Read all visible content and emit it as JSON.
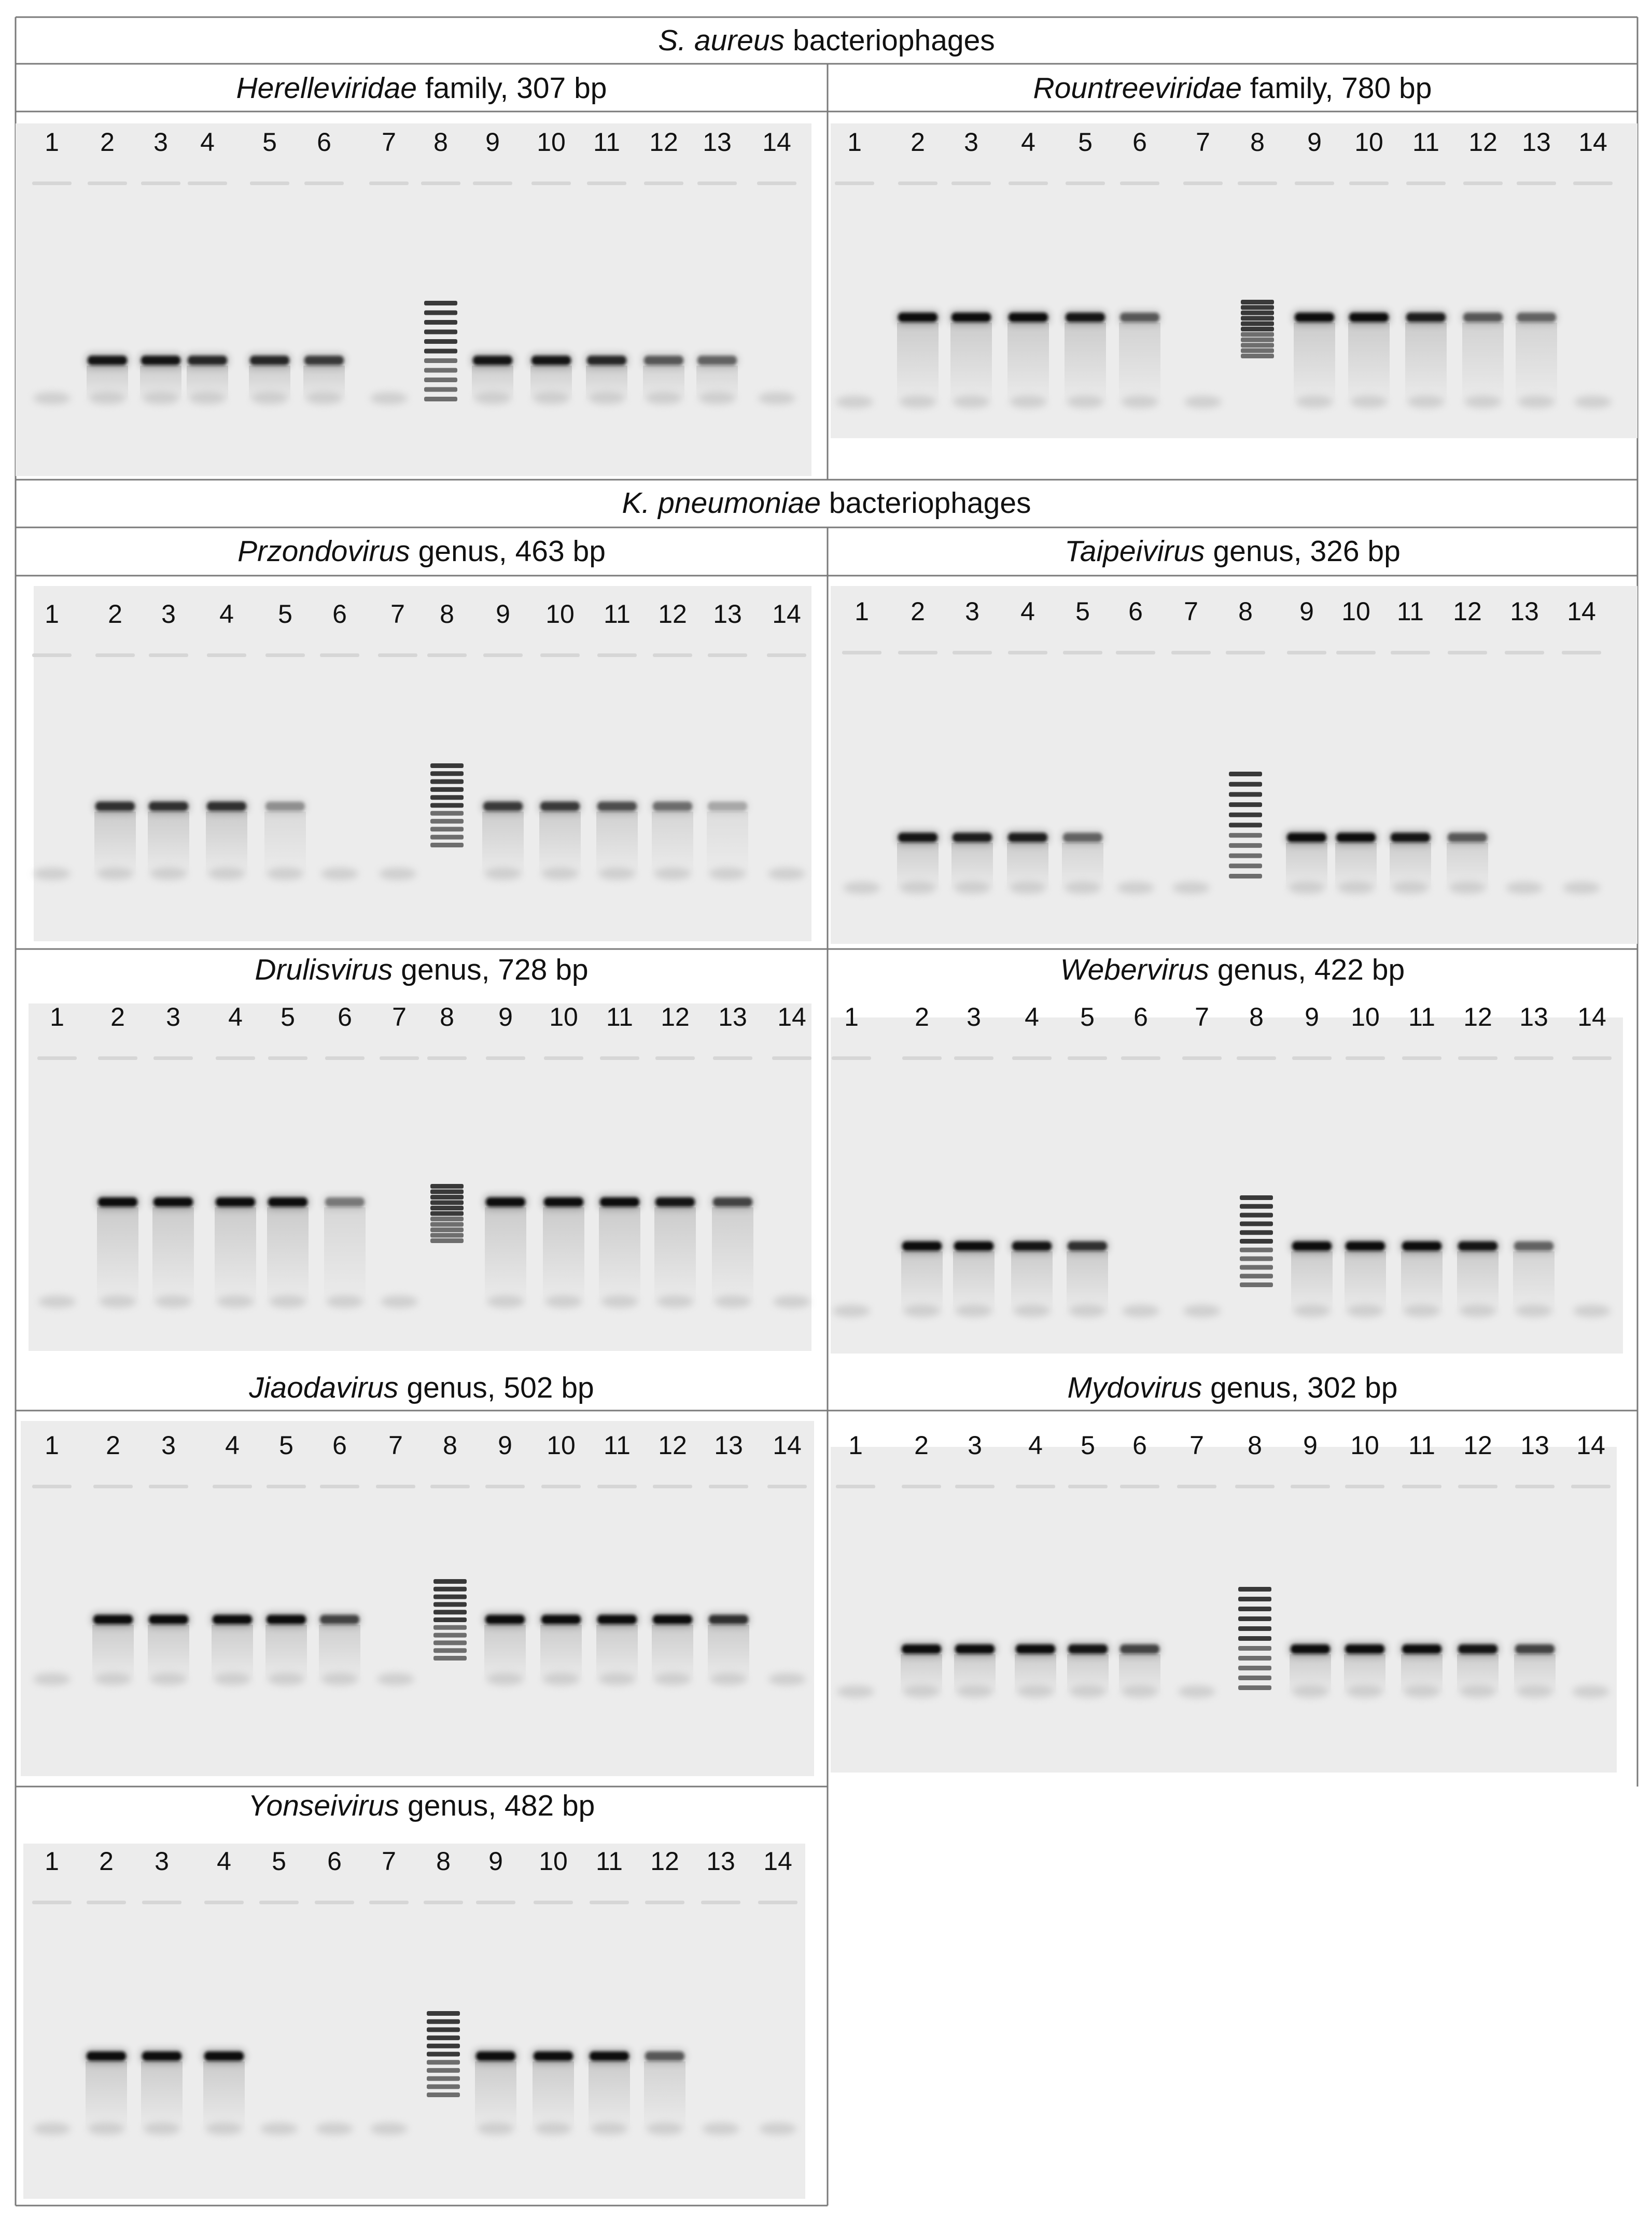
{
  "sections": [
    {
      "organism_italic": "S. aureus",
      "suffix": "bacteriophages"
    },
    {
      "organism_italic": "K. pneumoniae",
      "suffix": "bacteriophages"
    }
  ],
  "panels": [
    {
      "taxon": "Herelleviridae",
      "rank": "family",
      "size": "307 bp",
      "lanes": [
        "1",
        "2",
        "3",
        "4",
        "5",
        "6",
        "7",
        "8",
        "9",
        "10",
        "11",
        "12",
        "13",
        "14"
      ],
      "band_intensity": [
        0,
        0.95,
        0.95,
        0.85,
        0.85,
        0.75,
        0,
        -1,
        0.95,
        0.95,
        0.85,
        0.6,
        0.55,
        0
      ]
    },
    {
      "taxon": "Rountreeviridae",
      "rank": "family",
      "size": "780 bp",
      "lanes": [
        "1",
        "2",
        "3",
        "4",
        "5",
        "6",
        "7",
        "8",
        "9",
        "10",
        "11",
        "12",
        "13",
        "14"
      ],
      "band_intensity": [
        0,
        1,
        1,
        1,
        0.95,
        0.6,
        0,
        -1,
        1,
        1,
        0.9,
        0.6,
        0.55,
        0
      ]
    },
    {
      "taxon": "Przondovirus",
      "rank": "genus",
      "size": "463 bp",
      "lanes": [
        "1",
        "2",
        "3",
        "4",
        "5",
        "6",
        "7",
        "8",
        "9",
        "10",
        "11",
        "12",
        "13",
        "14"
      ],
      "band_intensity": [
        0,
        0.8,
        0.8,
        0.8,
        0.35,
        0,
        0,
        -1,
        0.75,
        0.75,
        0.65,
        0.5,
        0.25,
        0
      ]
    },
    {
      "taxon": "Taipeivirus",
      "rank": "genus",
      "size": "326 bp",
      "lanes": [
        "1",
        "2",
        "3",
        "4",
        "5",
        "6",
        "7",
        "8",
        "9",
        "10",
        "11",
        "12",
        "13",
        "14"
      ],
      "band_intensity": [
        0,
        0.95,
        0.9,
        0.9,
        0.55,
        0,
        0,
        -1,
        1,
        1,
        0.95,
        0.6,
        0,
        0
      ]
    },
    {
      "taxon": "Drulisvirus",
      "rank": "genus",
      "size": "728 bp",
      "lanes": [
        "1",
        "2",
        "3",
        "4",
        "5",
        "6",
        "7",
        "8",
        "9",
        "10",
        "11",
        "12",
        "13",
        "14"
      ],
      "band_intensity": [
        0,
        1,
        1,
        1,
        1,
        0.45,
        0,
        -1,
        1,
        1,
        1,
        0.95,
        0.7,
        0
      ]
    },
    {
      "taxon": "Webervirus",
      "rank": "genus",
      "size": "422 bp",
      "lanes": [
        "1",
        "2",
        "3",
        "4",
        "5",
        "6",
        "7",
        "8",
        "9",
        "10",
        "11",
        "12",
        "13",
        "14"
      ],
      "band_intensity": [
        0,
        1,
        1,
        0.95,
        0.8,
        0,
        0,
        -1,
        1,
        1,
        1,
        0.95,
        0.55,
        0
      ]
    },
    {
      "taxon": "Jiaodavirus",
      "rank": "genus",
      "size": "502 bp",
      "lanes": [
        "1",
        "2",
        "3",
        "4",
        "5",
        "6",
        "7",
        "8",
        "9",
        "10",
        "11",
        "12",
        "13",
        "14"
      ],
      "band_intensity": [
        0,
        1,
        1,
        1,
        1,
        0.7,
        0,
        -1,
        1,
        1,
        1,
        1,
        0.8,
        0
      ]
    },
    {
      "taxon": "Mydovirus",
      "rank": "genus",
      "size": "302 bp",
      "lanes": [
        "1",
        "2",
        "3",
        "4",
        "5",
        "6",
        "7",
        "8",
        "9",
        "10",
        "11",
        "12",
        "13",
        "14"
      ],
      "band_intensity": [
        0,
        1,
        1,
        1,
        0.95,
        0.7,
        0,
        -1,
        1,
        1,
        1,
        0.95,
        0.7,
        0
      ]
    },
    {
      "taxon": "Yonseivirus",
      "rank": "genus",
      "size": "482 bp",
      "lanes": [
        "1",
        "2",
        "3",
        "4",
        "5",
        "6",
        "7",
        "8",
        "9",
        "10",
        "11",
        "12",
        "13",
        "14"
      ],
      "band_intensity": [
        0,
        1,
        1,
        1,
        0,
        0,
        0,
        -1,
        1,
        1,
        1,
        0.6,
        0,
        0
      ]
    }
  ]
}
